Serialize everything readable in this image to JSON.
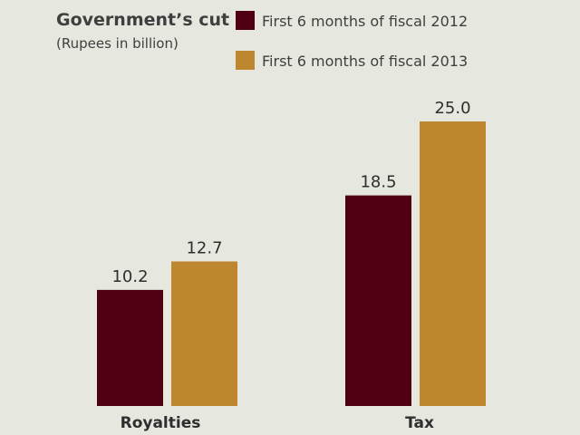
{
  "chart_data": {
    "type": "bar",
    "title": "Government’s cut",
    "subtitle": "(Rupees in billion)",
    "categories": [
      "Royalties",
      "Tax"
    ],
    "series": [
      {
        "name": "First 6 months of fiscal 2012",
        "values": [
          10.2,
          18.5
        ],
        "color": "#4e0012"
      },
      {
        "name": "First 6 months of fiscal 2013",
        "values": [
          12.7,
          25.0
        ],
        "color": "#bd862f"
      }
    ],
    "value_labels": [
      [
        "10.2",
        "18.5"
      ],
      [
        "12.7",
        "25.0"
      ]
    ],
    "ylim": [
      0,
      25
    ],
    "grid": false,
    "legend": "top-right",
    "background": "#e6e7df"
  }
}
